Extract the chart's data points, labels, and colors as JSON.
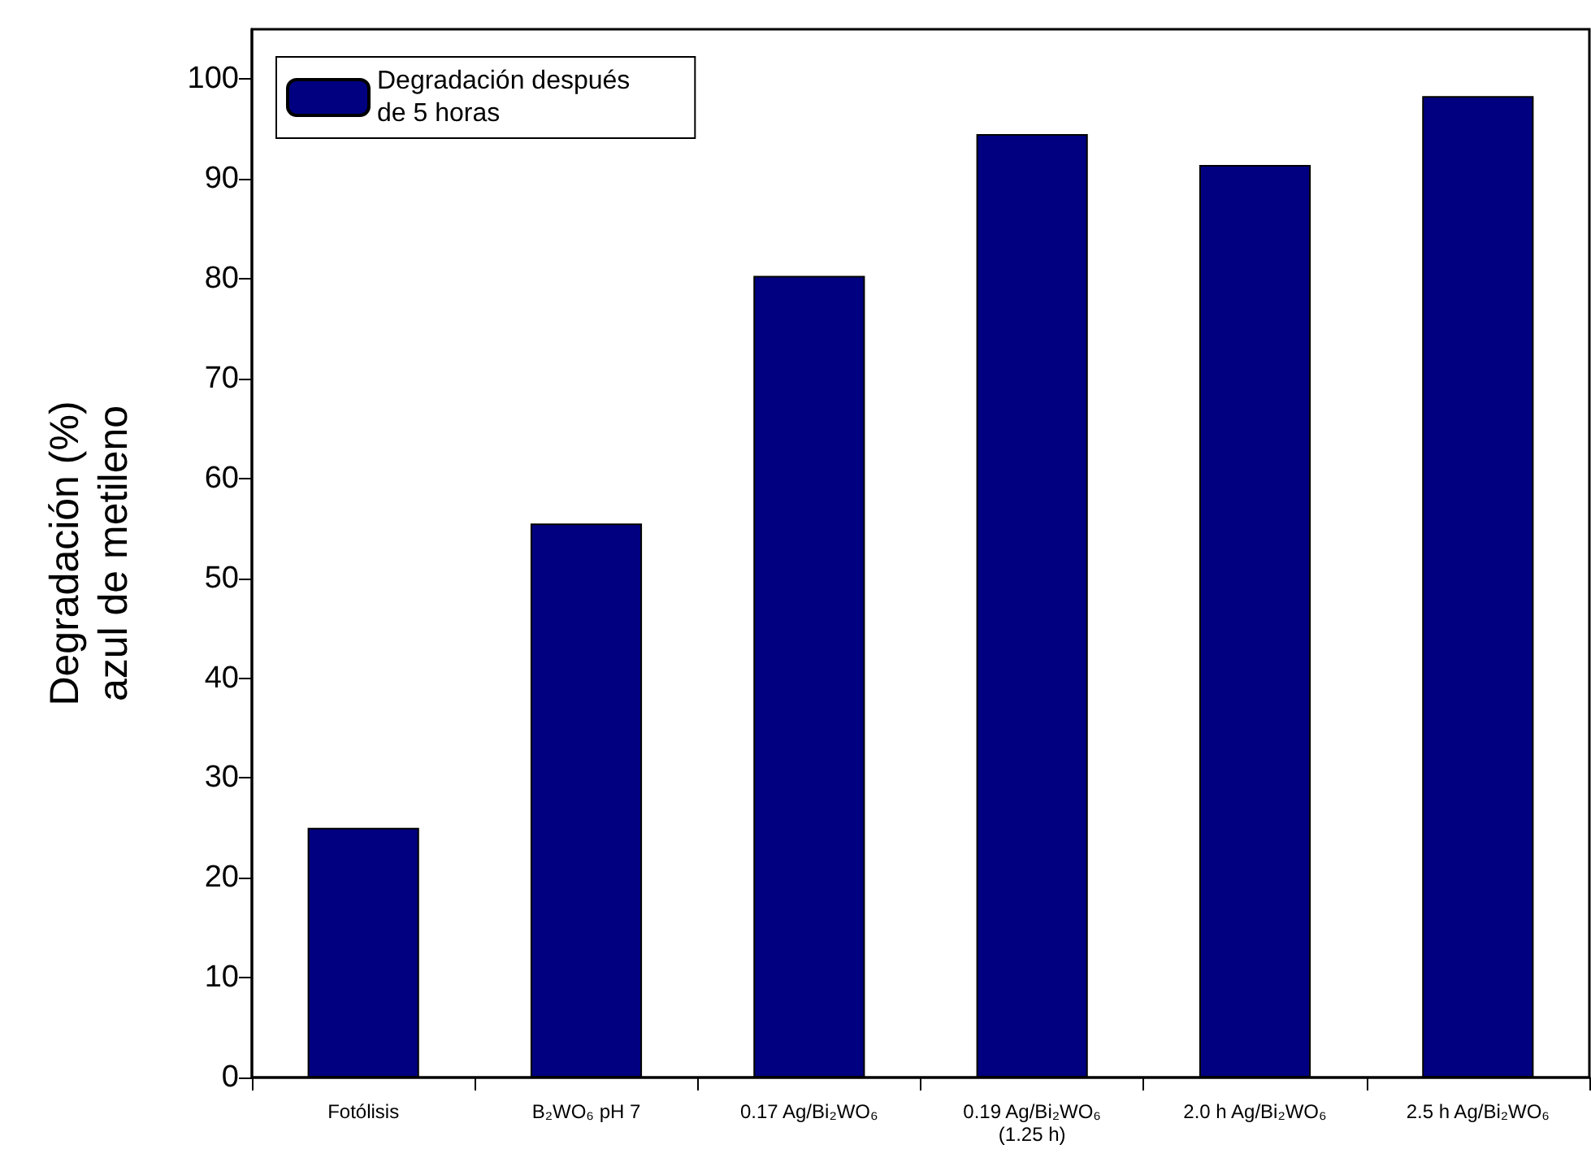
{
  "chart_data": {
    "type": "bar",
    "ylabel": "Degradación (%)\nazul de metileno",
    "categories": [
      "Fotólisis",
      "B₂WO₆ pH 7",
      "0.17 Ag/Bi₂WO₆",
      "0.19 Ag/Bi₂WO₆\n(1.25 h)",
      "2.0 h Ag/Bi₂WO₆",
      "2.5 h Ag/Bi₂WO₆"
    ],
    "series": [
      {
        "name": "Degradación después\nde 5 horas",
        "color": "#000080",
        "values": [
          25,
          55.5,
          80.3,
          94.5,
          91.4,
          98.3
        ]
      }
    ],
    "ylim": [
      0,
      105
    ],
    "yticks": [
      0,
      10,
      20,
      30,
      40,
      50,
      60,
      70,
      80,
      90,
      100
    ],
    "grid": false,
    "legend": "top left"
  }
}
